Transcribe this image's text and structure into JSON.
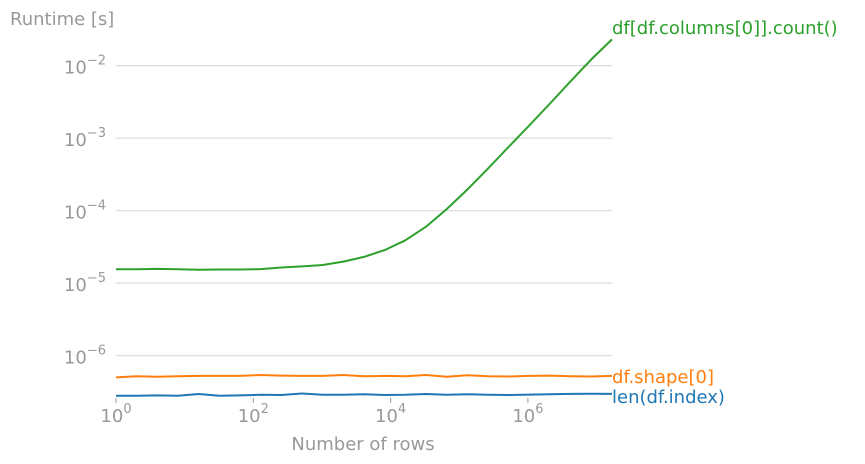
{
  "chart_data": {
    "type": "line",
    "title": "",
    "xlabel": "Number of rows",
    "ylabel": "Runtime [s]",
    "xscale": "log",
    "yscale": "log",
    "xlim": [
      1,
      16777216
    ],
    "ylim": [
      2.6e-07,
      0.04
    ],
    "grid": "horizontal",
    "legend": "labels at line ends (right)",
    "x_ticks": [
      {
        "value": 1,
        "base": "10",
        "exp": "0"
      },
      {
        "value": 100,
        "base": "10",
        "exp": "2"
      },
      {
        "value": 10000,
        "base": "10",
        "exp": "4"
      },
      {
        "value": 1000000,
        "base": "10",
        "exp": "6"
      }
    ],
    "y_ticks": [
      {
        "value": 0.01,
        "base": "10",
        "exp": "−2"
      },
      {
        "value": 0.001,
        "base": "10",
        "exp": "−3"
      },
      {
        "value": 0.0001,
        "base": "10",
        "exp": "−4"
      },
      {
        "value": 1e-05,
        "base": "10",
        "exp": "−5"
      },
      {
        "value": 1e-06,
        "base": "10",
        "exp": "−6"
      }
    ],
    "x": [
      1,
      2,
      4,
      8,
      16,
      32,
      64,
      128,
      256,
      512,
      1024,
      2048,
      4096,
      8192,
      16384,
      32768,
      65536,
      131072,
      262144,
      524288,
      1048576,
      2097152,
      4194304,
      8388608,
      16777216
    ],
    "series": [
      {
        "name": "df[df.columns[0]].count()",
        "color": "#2ca02c",
        "values": [
          1.55e-05,
          1.55e-05,
          1.57e-05,
          1.55e-05,
          1.53e-05,
          1.54e-05,
          1.54e-05,
          1.56e-05,
          1.64e-05,
          1.7e-05,
          1.78e-05,
          1.98e-05,
          2.3e-05,
          2.85e-05,
          3.9e-05,
          6e-05,
          0.000105,
          0.000195,
          0.00038,
          0.00076,
          0.0015,
          0.003,
          0.0061,
          0.0122,
          0.023
        ]
      },
      {
        "name": "df.shape[0]",
        "color": "#ff7f0e",
        "values": [
          5e-07,
          5.2e-07,
          5.1e-07,
          5.2e-07,
          5.25e-07,
          5.25e-07,
          5.25e-07,
          5.4e-07,
          5.3e-07,
          5.25e-07,
          5.25e-07,
          5.4e-07,
          5.2e-07,
          5.25e-07,
          5.2e-07,
          5.4e-07,
          5.1e-07,
          5.35e-07,
          5.2e-07,
          5.15e-07,
          5.25e-07,
          5.3e-07,
          5.2e-07,
          5.15e-07,
          5.25e-07
        ]
      },
      {
        "name": "len(df.index)",
        "color": "#1f77b4",
        "values": [
          2.8e-07,
          2.8e-07,
          2.82e-07,
          2.8e-07,
          2.95e-07,
          2.8e-07,
          2.82e-07,
          2.88e-07,
          2.86e-07,
          3e-07,
          2.88e-07,
          2.88e-07,
          2.92e-07,
          2.86e-07,
          2.88e-07,
          2.95e-07,
          2.88e-07,
          2.92e-07,
          2.88e-07,
          2.86e-07,
          2.9e-07,
          2.92e-07,
          2.96e-07,
          2.98e-07,
          2.96e-07
        ]
      }
    ]
  }
}
